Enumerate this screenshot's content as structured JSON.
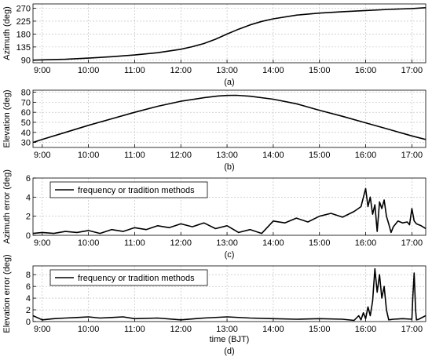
{
  "chart_data": [
    {
      "type": "line",
      "panel_label": "(a)",
      "ylabel": "Azimuth (deg)",
      "xlabel": "",
      "xlim": [
        8.8,
        17.3
      ],
      "ylim": [
        80,
        285
      ],
      "xticks": [
        9,
        10,
        11,
        12,
        13,
        14,
        15,
        16,
        17
      ],
      "xtick_labels": [
        "9:00",
        "10:00",
        "11:00",
        "12:00",
        "13:00",
        "14:00",
        "15:00",
        "16:00",
        "17:00"
      ],
      "yticks": [
        90,
        135,
        180,
        225,
        270
      ],
      "ytick_labels": [
        "90",
        "135",
        "180",
        "225",
        "270"
      ],
      "grid": true,
      "legend": null,
      "series": [
        {
          "x": [
            8.8,
            9.0,
            9.5,
            10.0,
            10.5,
            11.0,
            11.5,
            12.0,
            12.25,
            12.5,
            12.75,
            13.0,
            13.25,
            13.5,
            13.75,
            14.0,
            14.5,
            15.0,
            15.5,
            16.0,
            16.5,
            17.0,
            17.3
          ],
          "y": [
            89,
            90,
            92,
            96,
            101,
            107,
            115,
            127,
            136,
            147,
            162,
            180,
            197,
            212,
            224,
            233,
            246,
            253,
            258,
            262,
            266,
            269,
            272
          ]
        }
      ]
    },
    {
      "type": "line",
      "panel_label": "(b)",
      "ylabel": "Elevation (deg)",
      "xlabel": "",
      "xlim": [
        8.8,
        17.3
      ],
      "ylim": [
        25,
        82
      ],
      "xticks": [
        9,
        10,
        11,
        12,
        13,
        14,
        15,
        16,
        17
      ],
      "xtick_labels": [
        "9:00",
        "10:00",
        "11:00",
        "12:00",
        "13:00",
        "14:00",
        "15:00",
        "16:00",
        "17:00"
      ],
      "yticks": [
        30,
        40,
        50,
        60,
        70,
        80
      ],
      "ytick_labels": [
        "30",
        "40",
        "50",
        "60",
        "70",
        "80"
      ],
      "grid": true,
      "legend": null,
      "series": [
        {
          "x": [
            8.8,
            9.0,
            9.5,
            10.0,
            10.5,
            11.0,
            11.5,
            12.0,
            12.5,
            12.8,
            13.0,
            13.2,
            13.5,
            14.0,
            14.5,
            15.0,
            15.5,
            16.0,
            16.5,
            17.0,
            17.3
          ],
          "y": [
            30,
            33,
            40,
            47,
            53.5,
            60,
            66,
            71,
            74.5,
            76.2,
            76.8,
            76.9,
            76,
            73,
            68.5,
            62,
            56,
            49.5,
            43,
            36.5,
            33
          ]
        }
      ]
    },
    {
      "type": "line",
      "panel_label": "(c)",
      "ylabel": "Azimuth error (deg)",
      "xlabel": "",
      "xlim": [
        8.8,
        17.3
      ],
      "ylim": [
        0,
        6
      ],
      "xticks": [
        9,
        10,
        11,
        12,
        13,
        14,
        15,
        16,
        17
      ],
      "xtick_labels": [
        "9:00",
        "10:00",
        "11:00",
        "12:00",
        "13:00",
        "14:00",
        "15:00",
        "16:00",
        "17:00"
      ],
      "yticks": [
        0,
        2,
        4,
        6
      ],
      "ytick_labels": [
        "0",
        "2",
        "4",
        "6"
      ],
      "grid": true,
      "legend": "top-left",
      "series": [
        {
          "name": "frequency or tradition methods",
          "x": [
            8.8,
            9.0,
            9.25,
            9.5,
            9.75,
            10.0,
            10.25,
            10.5,
            10.75,
            11.0,
            11.25,
            11.5,
            11.75,
            12.0,
            12.25,
            12.5,
            12.75,
            13.0,
            13.25,
            13.5,
            13.75,
            14.0,
            14.25,
            14.5,
            14.75,
            15.0,
            15.25,
            15.5,
            15.75,
            15.9,
            16.0,
            16.05,
            16.1,
            16.15,
            16.2,
            16.25,
            16.3,
            16.35,
            16.4,
            16.45,
            16.5,
            16.55,
            16.6,
            16.7,
            16.8,
            16.9,
            16.95,
            17.0,
            17.05,
            17.1,
            17.2,
            17.3
          ],
          "y": [
            0.2,
            0.3,
            0.2,
            0.4,
            0.3,
            0.5,
            0.2,
            0.6,
            0.4,
            0.8,
            0.6,
            1.0,
            0.8,
            1.2,
            0.9,
            1.3,
            0.7,
            1.0,
            0.3,
            0.6,
            0.2,
            1.5,
            1.3,
            1.8,
            1.4,
            2.0,
            2.3,
            1.9,
            2.5,
            3.0,
            4.9,
            3.0,
            4.0,
            2.2,
            3.2,
            0.4,
            3.5,
            2.8,
            3.7,
            2.0,
            1.2,
            0.3,
            0.9,
            1.5,
            1.3,
            1.4,
            1.1,
            2.8,
            1.5,
            1.2,
            1.0,
            0.7
          ]
        }
      ]
    },
    {
      "type": "line",
      "panel_label": "(d)",
      "ylabel": "Elevation error (deg)",
      "xlabel": "time (BJT)",
      "xlim": [
        8.8,
        17.3
      ],
      "ylim": [
        0,
        9.5
      ],
      "xticks": [
        9,
        10,
        11,
        12,
        13,
        14,
        15,
        16,
        17
      ],
      "xtick_labels": [
        "9:00",
        "10:00",
        "11:00",
        "12:00",
        "13:00",
        "14:00",
        "15:00",
        "16:00",
        "17:00"
      ],
      "yticks": [
        0,
        2,
        4,
        6,
        8
      ],
      "ytick_labels": [
        "0",
        "2",
        "4",
        "6",
        "8"
      ],
      "grid": true,
      "legend": "top-left",
      "series": [
        {
          "name": "frequency or tradition methods",
          "x": [
            8.8,
            9.0,
            9.25,
            9.5,
            9.75,
            10.0,
            10.25,
            10.5,
            10.75,
            11.0,
            11.5,
            12.0,
            12.5,
            13.0,
            13.5,
            14.0,
            14.5,
            15.0,
            15.5,
            15.75,
            15.85,
            15.9,
            15.95,
            16.0,
            16.05,
            16.1,
            16.15,
            16.2,
            16.25,
            16.3,
            16.35,
            16.4,
            16.45,
            16.5,
            16.6,
            16.8,
            17.0,
            17.02,
            17.05,
            17.08,
            17.1,
            17.15,
            17.2,
            17.3
          ],
          "y": [
            1.0,
            0.3,
            0.5,
            0.6,
            0.7,
            0.8,
            0.6,
            0.7,
            0.8,
            0.5,
            0.6,
            0.3,
            0.6,
            0.8,
            0.6,
            0.5,
            0.4,
            0.5,
            0.4,
            0.2,
            1.0,
            0.3,
            1.5,
            0.5,
            2.5,
            1.0,
            3.5,
            9.0,
            5.0,
            8.0,
            4.0,
            6.0,
            2.0,
            0.3,
            0.4,
            0.5,
            0.4,
            4.0,
            8.3,
            2.0,
            0.3,
            0.4,
            0.6,
            1.0
          ]
        }
      ]
    }
  ]
}
